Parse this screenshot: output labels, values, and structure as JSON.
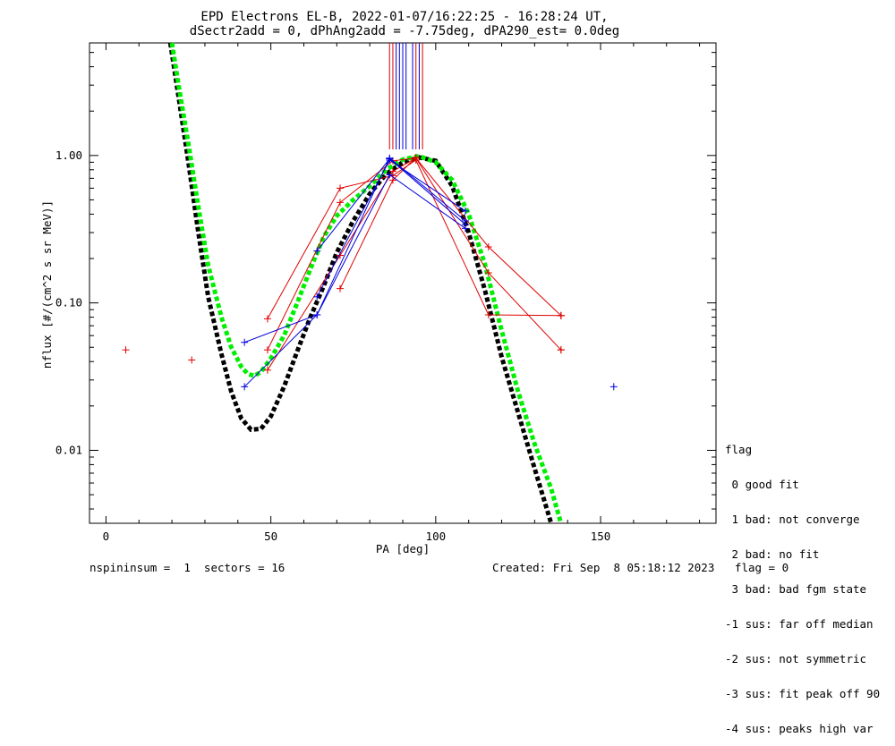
{
  "chart_data": {
    "type": "scatter",
    "title": "EPD Electrons EL-B, 2022-01-07/16:22:25 - 16:28:24 UT,",
    "subtitle": "dSectr2add = 0, dPhAng2add = -7.75deg, dPA290_est=   0.0deg",
    "xlabel": "PA [deg]",
    "ylabel": "nflux [#/(cm^2 s sr MeV)]",
    "xlim": [
      -5,
      185
    ],
    "ylim": [
      0.0032,
      5.8
    ],
    "yscale": "log",
    "xticks": [
      0,
      50,
      100,
      150
    ],
    "xtick_labels": [
      "0",
      "50",
      "100",
      "150"
    ],
    "yticks": [
      0.01,
      0.1,
      1.0
    ],
    "ytick_labels": [
      "0.01",
      "0.10",
      "1.00"
    ],
    "colors": {
      "red": "#e00000",
      "blue": "#0000dd",
      "black": "#000000",
      "green": "#00ee00"
    },
    "series": [
      {
        "color": "#e00000",
        "style": "plus",
        "points": [
          [
            6,
            0.048
          ],
          [
            26,
            0.041
          ],
          [
            138,
            0.048
          ],
          [
            138,
            0.082
          ]
        ]
      },
      {
        "color": "#e00000",
        "style": "line-plus",
        "points": [
          [
            49,
            0.035
          ],
          [
            71,
            0.21
          ],
          [
            87,
            0.78
          ],
          [
            94,
            0.96
          ],
          [
            116,
            0.16
          ],
          [
            138,
            0.048
          ]
        ]
      },
      {
        "color": "#e00000",
        "style": "line-plus",
        "points": [
          [
            49,
            0.048
          ],
          [
            71,
            0.48
          ],
          [
            87,
            0.92
          ],
          [
            94,
            0.96
          ],
          [
            116,
            0.24
          ],
          [
            138,
            0.082
          ]
        ]
      },
      {
        "color": "#e00000",
        "style": "line-plus",
        "points": [
          [
            49,
            0.078
          ],
          [
            71,
            0.6
          ],
          [
            87,
            0.73
          ],
          [
            94,
            0.93
          ],
          [
            116,
            0.083
          ],
          [
            138,
            0.082
          ]
        ]
      },
      {
        "color": "#e00000",
        "style": "line-plus",
        "points": [
          [
            71,
            0.125
          ],
          [
            87,
            0.68
          ],
          [
            94,
            0.97
          ]
        ]
      },
      {
        "color": "#0000dd",
        "style": "plus",
        "points": [
          [
            154,
            0.027
          ]
        ]
      },
      {
        "color": "#0000dd",
        "style": "line-plus",
        "points": [
          [
            42,
            0.027
          ],
          [
            64,
            0.083
          ],
          [
            86,
            0.96
          ],
          [
            109,
            0.36
          ]
        ]
      },
      {
        "color": "#0000dd",
        "style": "line-plus",
        "points": [
          [
            42,
            0.054
          ],
          [
            64,
            0.083
          ],
          [
            86,
            0.74
          ],
          [
            109,
            0.32
          ]
        ]
      },
      {
        "color": "#0000dd",
        "style": "line-plus",
        "points": [
          [
            64,
            0.11
          ],
          [
            86,
            0.93
          ],
          [
            109,
            0.42
          ]
        ]
      },
      {
        "color": "#0000dd",
        "style": "line-plus",
        "points": [
          [
            64,
            0.225
          ],
          [
            86,
            0.95
          ],
          [
            109,
            0.34
          ]
        ]
      },
      {
        "color": "#000000",
        "style": "dashed-fit",
        "points": [
          [
            19.5,
            5.8
          ],
          [
            22,
            2.5
          ],
          [
            25,
            0.9
          ],
          [
            28,
            0.3
          ],
          [
            31,
            0.11
          ],
          [
            35,
            0.045
          ],
          [
            38,
            0.025
          ],
          [
            41,
            0.0165
          ],
          [
            44,
            0.0138
          ],
          [
            47,
            0.014
          ],
          [
            50,
            0.017
          ],
          [
            54,
            0.027
          ],
          [
            58,
            0.047
          ],
          [
            62,
            0.08
          ],
          [
            66,
            0.13
          ],
          [
            70,
            0.22
          ],
          [
            75,
            0.36
          ],
          [
            80,
            0.55
          ],
          [
            85,
            0.75
          ],
          [
            90,
            0.9
          ],
          [
            95,
            0.97
          ],
          [
            100,
            0.92
          ],
          [
            105,
            0.62
          ],
          [
            110,
            0.3
          ],
          [
            115,
            0.12
          ],
          [
            120,
            0.043
          ],
          [
            125,
            0.018
          ],
          [
            130,
            0.0075
          ],
          [
            135,
            0.0032
          ]
        ]
      },
      {
        "color": "#00ee00",
        "style": "dashed-fit",
        "points": [
          [
            20,
            5.8
          ],
          [
            22,
            3.0
          ],
          [
            25,
            1.2
          ],
          [
            28,
            0.45
          ],
          [
            31,
            0.18
          ],
          [
            35,
            0.08
          ],
          [
            38,
            0.05
          ],
          [
            41,
            0.037
          ],
          [
            43,
            0.033
          ],
          [
            45,
            0.032
          ],
          [
            47,
            0.034
          ],
          [
            50,
            0.042
          ],
          [
            54,
            0.06
          ],
          [
            58,
            0.1
          ],
          [
            62,
            0.17
          ],
          [
            66,
            0.28
          ],
          [
            70,
            0.39
          ],
          [
            75,
            0.5
          ],
          [
            80,
            0.62
          ],
          [
            85,
            0.8
          ],
          [
            90,
            0.94
          ],
          [
            95,
            0.99
          ],
          [
            100,
            0.9
          ],
          [
            105,
            0.68
          ],
          [
            110,
            0.4
          ],
          [
            115,
            0.18
          ],
          [
            120,
            0.065
          ],
          [
            125,
            0.025
          ],
          [
            130,
            0.011
          ],
          [
            135,
            0.0055
          ],
          [
            138,
            0.0032
          ]
        ]
      }
    ],
    "vertical_lines": [
      {
        "color": "#e00000",
        "x": [
          86,
          87,
          94,
          96
        ],
        "from_y": 1.1
      },
      {
        "color": "#0000dd",
        "x": [
          88,
          89,
          90,
          91,
          93,
          95
        ],
        "from_y": 1.1
      }
    ]
  },
  "legend": {
    "title": "flag",
    "entries": [
      " 0 good fit",
      " 1 bad: not converge",
      " 2 bad: no fit",
      " 3 bad: bad fgm state",
      "-1 sus: far off median",
      "-2 sus: not symmetric",
      "-3 sus: fit peak off 90",
      "-4 sus: peaks high var"
    ]
  },
  "footer": {
    "left": "nspininsum =  1  sectors = 16",
    "right": "Created: Fri Sep  8 05:18:12 2023   flag = 0"
  }
}
